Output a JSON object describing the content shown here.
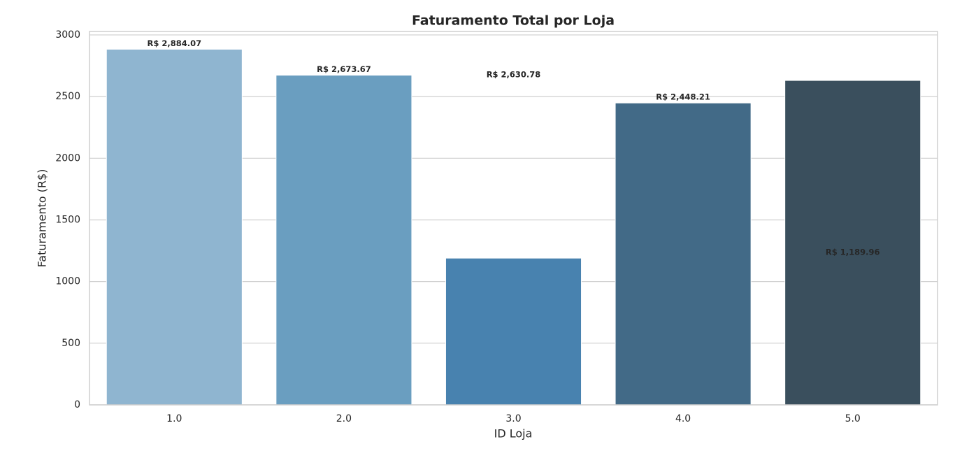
{
  "chart_data": {
    "type": "bar",
    "title": "Faturamento Total por Loja",
    "x_label": "ID Loja",
    "y_label": "Faturamento (R$)",
    "categories": [
      "1.0",
      "2.0",
      "3.0",
      "4.0",
      "5.0"
    ],
    "values": [
      2884.07,
      2673.67,
      1189.96,
      2448.21,
      2630.78
    ],
    "colors": [
      "#8fb5d0",
      "#6a9ec0",
      "#4882af",
      "#426a87",
      "#3a4f5d"
    ],
    "data_labels": {
      "values": [
        2884.07,
        2673.67,
        2630.78,
        2448.21,
        1189.96
      ],
      "value_labels": [
        "R$ 2,884.07",
        "R$ 2,673.67",
        "R$ 2,630.78",
        "R$ 2,448.21",
        "R$ 1,189.96"
      ]
    },
    "ylim": [
      0,
      3028
    ],
    "yticks": [
      0,
      500,
      1000,
      1500,
      2000,
      2500,
      3000
    ],
    "grid": true
  }
}
